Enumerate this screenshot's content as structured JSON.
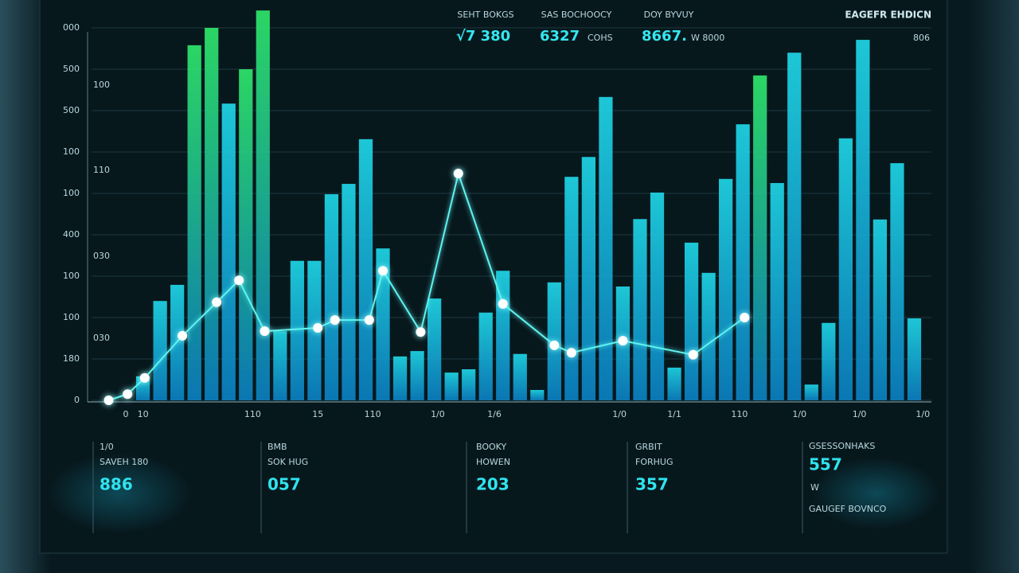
{
  "header": {
    "stats": [
      {
        "label": "SEHT BOKGS",
        "value": "√7 380"
      },
      {
        "label": "SAS BOCHOOCY",
        "value": "6327",
        "unit": "COHS"
      },
      {
        "label": "DOY BYVUY",
        "value": "8667.",
        "unit": "W 8000"
      }
    ],
    "brand": "EAGEFR EHDICN",
    "brand_sub": "806"
  },
  "chart_data": {
    "type": "bar",
    "x": [
      1,
      2,
      3,
      4,
      5,
      6,
      7,
      8,
      9,
      10,
      11,
      12,
      13,
      14,
      15,
      16,
      17,
      18,
      19,
      20,
      21,
      22,
      23,
      24,
      25,
      26,
      27,
      28,
      29,
      30,
      31,
      32,
      33,
      34,
      35,
      36,
      37,
      38,
      39,
      40,
      41,
      42,
      43,
      44,
      45,
      46
    ],
    "values": [
      58,
      240,
      279,
      858,
      900,
      717,
      800,
      942,
      167,
      337,
      337,
      498,
      523,
      631,
      367,
      106,
      119,
      246,
      67,
      75,
      212,
      313,
      112,
      25,
      285,
      540,
      588,
      733,
      275,
      438,
      502,
      79,
      381,
      308,
      535,
      667,
      785,
      525,
      840,
      38,
      187,
      633,
      871,
      437,
      573,
      198
    ],
    "colors": [
      "#1fd6e6",
      "#1fd6e6",
      "#1fd6e6",
      "#2ee66a",
      "#2ee66a",
      "#1fd6e6",
      "#2ee66a",
      "#2ee66a",
      "#1fd6e6",
      "#1fd6e6",
      "#1fd6e6",
      "#1fd6e6",
      "#1fd6e6",
      "#1fd6e6",
      "#1fd6e6",
      "#1fd6e6",
      "#1fd6e6",
      "#1fd6e6",
      "#1fd6e6",
      "#1fd6e6",
      "#1fd6e6",
      "#1fd6e6",
      "#1fd6e6",
      "#1fd6e6",
      "#1fd6e6",
      "#1fd6e6",
      "#1fd6e6",
      "#1fd6e6",
      "#1fd6e6",
      "#1fd6e6",
      "#1fd6e6",
      "#1fd6e6",
      "#1fd6e6",
      "#1fd6e6",
      "#1fd6e6",
      "#1fd6e6",
      "#2ee66a",
      "#1fd6e6",
      "#1fd6e6",
      "#1fd6e6",
      "#1fd6e6",
      "#1fd6e6",
      "#1fd6e6",
      "#1fd6e6",
      "#1fd6e6",
      "#1fd6e6"
    ],
    "xlim": [
      -2,
      47
    ],
    "xticks": [
      {
        "value": 1,
        "label": "10"
      },
      {
        "value": 7.4,
        "label": "110"
      },
      {
        "value": 11.2,
        "label": "15"
      },
      {
        "value": 14.4,
        "label": "110"
      },
      {
        "value": 18.2,
        "label": "1/0"
      },
      {
        "value": 21.5,
        "label": "1/6"
      },
      0,
      {
        "value": 28.8,
        "label": "1/0"
      },
      {
        "value": 32,
        "label": "1/1"
      },
      {
        "value": 35.8,
        "label": "110"
      },
      {
        "value": 39.3,
        "label": "1/0"
      },
      {
        "value": 42.8,
        "label": "1/0"
      },
      {
        "value": 46.5,
        "label": "1/0"
      }
    ],
    "ylim": [
      0,
      900
    ],
    "yticks": [
      {
        "value": 900,
        "label": "000"
      },
      {
        "value": 800,
        "label": "500"
      },
      {
        "value": 700,
        "label": "500"
      },
      {
        "value": 600,
        "label": "100"
      },
      {
        "value": 500,
        "label": "100"
      },
      {
        "value": 400,
        "label": "400"
      },
      {
        "value": 300,
        "label": "100"
      },
      {
        "value": 200,
        "label": "100"
      },
      {
        "value": 100,
        "label": "180"
      },
      0
    ],
    "axis_notes": [
      "100",
      "110",
      "030",
      "030"
    ],
    "grid": true,
    "line": {
      "color": "#5ff3f0",
      "x": [
        -1,
        0.1,
        1.1,
        3.3,
        5.3,
        6.6,
        8.1,
        11.2,
        12.2,
        14.2,
        15,
        17.2,
        19.4,
        22,
        25,
        26,
        29,
        33.1,
        36.1
      ],
      "values": [
        0,
        15,
        54,
        156,
        237,
        290,
        167,
        175,
        194,
        194,
        313,
        165,
        548,
        233,
        133,
        115,
        144,
        110,
        200
      ]
    }
  },
  "cards": [
    {
      "title": "1/0",
      "subtitle": "SAVEH 180",
      "value": "886"
    },
    {
      "title": "BMB",
      "subtitle": "SOK HUG",
      "value": "057"
    },
    {
      "title": "BOOKY",
      "subtitle": "HOWEN",
      "value": "203"
    },
    {
      "title": "GRBIT",
      "subtitle": "FORHUG",
      "value": "357"
    },
    {
      "title": "GSESSONHAKS",
      "subtitle": "W",
      "value": "557",
      "footer": "GAUGEF BOVNCO"
    }
  ]
}
